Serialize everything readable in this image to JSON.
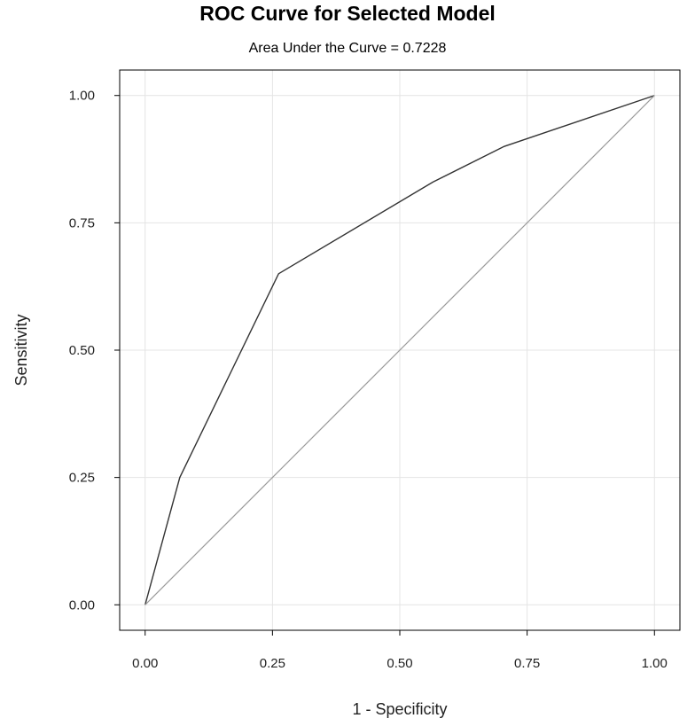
{
  "chart_data": {
    "type": "line",
    "title": "ROC Curve for Selected Model",
    "subtitle": "Area Under the Curve = 0.7228",
    "xlabel": "1 - Specificity",
    "ylabel": "Sensitivity",
    "xlim": [
      -0.05,
      1.05
    ],
    "ylim": [
      -0.05,
      1.05
    ],
    "x_ticks": [
      "0.00",
      "0.25",
      "0.50",
      "0.75",
      "1.00"
    ],
    "y_ticks": [
      "0.00",
      "0.25",
      "0.50",
      "0.75",
      "1.00"
    ],
    "grid": true,
    "series": [
      {
        "x": [
          0.0,
          0.068,
          0.262,
          0.565,
          0.705,
          1.0
        ],
        "y": [
          0.0,
          0.25,
          0.65,
          0.83,
          0.9,
          1.0
        ],
        "color": "#333333"
      },
      {
        "x": [
          0.0,
          1.0
        ],
        "y": [
          0.0,
          1.0
        ],
        "color": "#9a9a9a"
      }
    ]
  }
}
